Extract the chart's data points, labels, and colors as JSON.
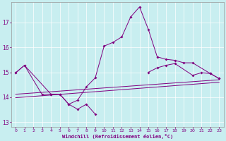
{
  "xlabel": "Windchill (Refroidissement éolien,°C)",
  "background_color": "#c8eef0",
  "line_color": "#800080",
  "xlim": [
    -0.5,
    23.5
  ],
  "ylim": [
    12.8,
    17.8
  ],
  "xticks": [
    0,
    1,
    2,
    3,
    4,
    5,
    6,
    7,
    8,
    9,
    10,
    11,
    12,
    13,
    14,
    15,
    16,
    17,
    18,
    19,
    20,
    21,
    22,
    23
  ],
  "yticks": [
    13,
    14,
    15,
    16,
    17
  ],
  "line_upper": {
    "x": [
      0,
      1,
      4,
      5,
      6,
      7,
      8,
      9,
      10,
      11,
      12,
      13,
      14,
      15,
      16,
      17,
      18,
      19,
      20,
      22,
      23
    ],
    "y": [
      14.98,
      15.28,
      14.12,
      14.12,
      13.72,
      13.88,
      14.42,
      14.78,
      16.05,
      16.2,
      16.42,
      17.22,
      17.62,
      16.72,
      15.62,
      15.52,
      15.48,
      15.38,
      15.38,
      14.95,
      14.75
    ]
  },
  "line_lower_left": {
    "x": [
      0,
      1,
      3,
      4,
      5,
      6,
      7,
      8,
      9
    ],
    "y": [
      14.98,
      15.28,
      14.1,
      14.12,
      14.12,
      13.72,
      13.52,
      13.72,
      13.32
    ]
  },
  "line_right": {
    "x": [
      15,
      16,
      17,
      18,
      20,
      21,
      22,
      23
    ],
    "y": [
      15.0,
      15.18,
      15.28,
      15.35,
      14.88,
      14.98,
      14.95,
      14.75
    ]
  },
  "trend1_x": [
    0,
    23
  ],
  "trend1_y": [
    13.98,
    14.6
  ],
  "trend2_x": [
    0,
    23
  ],
  "trend2_y": [
    14.12,
    14.7
  ]
}
